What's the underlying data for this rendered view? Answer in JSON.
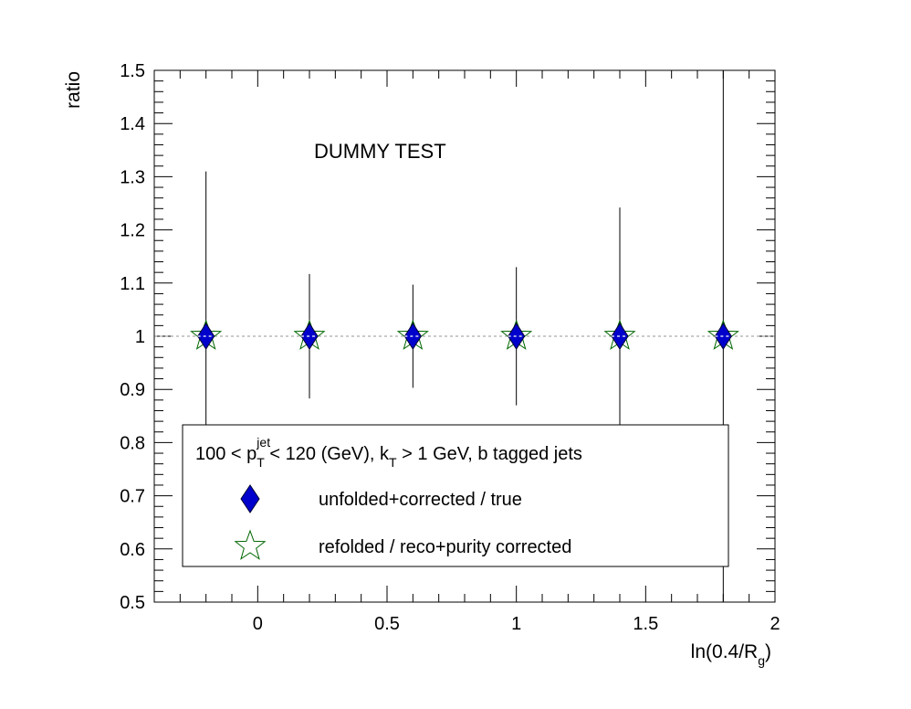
{
  "chart_data": {
    "type": "scatter",
    "title": "",
    "annotation": "DUMMY TEST",
    "xlabel": {
      "main": "ln(0.4/R",
      "sub": "g",
      "end": ")"
    },
    "ylabel": "ratio",
    "xlim": [
      -0.4,
      2.0
    ],
    "ylim": [
      0.5,
      1.5
    ],
    "x_ticks": [
      {
        "v": 0,
        "label": "0"
      },
      {
        "v": 0.5,
        "label": "0.5"
      },
      {
        "v": 1,
        "label": "1"
      },
      {
        "v": 1.5,
        "label": "1.5"
      },
      {
        "v": 2,
        "label": "2"
      }
    ],
    "y_ticks": [
      {
        "v": 0.5,
        "label": "0.5"
      },
      {
        "v": 0.6,
        "label": "0.6"
      },
      {
        "v": 0.7,
        "label": "0.7"
      },
      {
        "v": 0.8,
        "label": "0.8"
      },
      {
        "v": 0.9,
        "label": "0.9"
      },
      {
        "v": 1.0,
        "label": "1"
      },
      {
        "v": 1.1,
        "label": "1.1"
      },
      {
        "v": 1.2,
        "label": "1.2"
      },
      {
        "v": 1.3,
        "label": "1.3"
      },
      {
        "v": 1.4,
        "label": "1.4"
      },
      {
        "v": 1.5,
        "label": "1.5"
      }
    ],
    "reference_line": 1.0,
    "grid": false,
    "legend_placement": "bottom-center",
    "legend_header": {
      "parts": [
        {
          "t": "100 < p",
          "k": "n"
        },
        {
          "t": "jet",
          "k": "sup"
        },
        {
          "t": "T",
          "k": "sub"
        },
        {
          "t": " < 120 (GeV), k",
          "k": "n"
        },
        {
          "t": "T",
          "k": "sub"
        },
        {
          "t": " > 1 GeV, b tagged jets",
          "k": "n"
        }
      ]
    },
    "series": [
      {
        "name": "unfolded+corrected / true",
        "marker": "diamond",
        "color": "#0000cc",
        "points": [
          {
            "x": -0.2,
            "y": 1.0,
            "err": 0.31
          },
          {
            "x": 0.2,
            "y": 1.0,
            "err": 0.117
          },
          {
            "x": 0.6,
            "y": 1.0,
            "err": 0.097
          },
          {
            "x": 1.0,
            "y": 1.0,
            "err": 0.13
          },
          {
            "x": 1.4,
            "y": 1.0,
            "err": 0.242
          },
          {
            "x": 1.8,
            "y": 1.0,
            "err": 0.6
          }
        ]
      },
      {
        "name": "refolded / reco+purity corrected",
        "marker": "open-star",
        "color": "#006600",
        "points": [
          {
            "x": -0.2,
            "y": 1.0
          },
          {
            "x": 0.2,
            "y": 1.0
          },
          {
            "x": 0.6,
            "y": 1.0
          },
          {
            "x": 1.0,
            "y": 1.0
          },
          {
            "x": 1.4,
            "y": 1.0
          },
          {
            "x": 1.8,
            "y": 1.0
          }
        ]
      }
    ]
  }
}
